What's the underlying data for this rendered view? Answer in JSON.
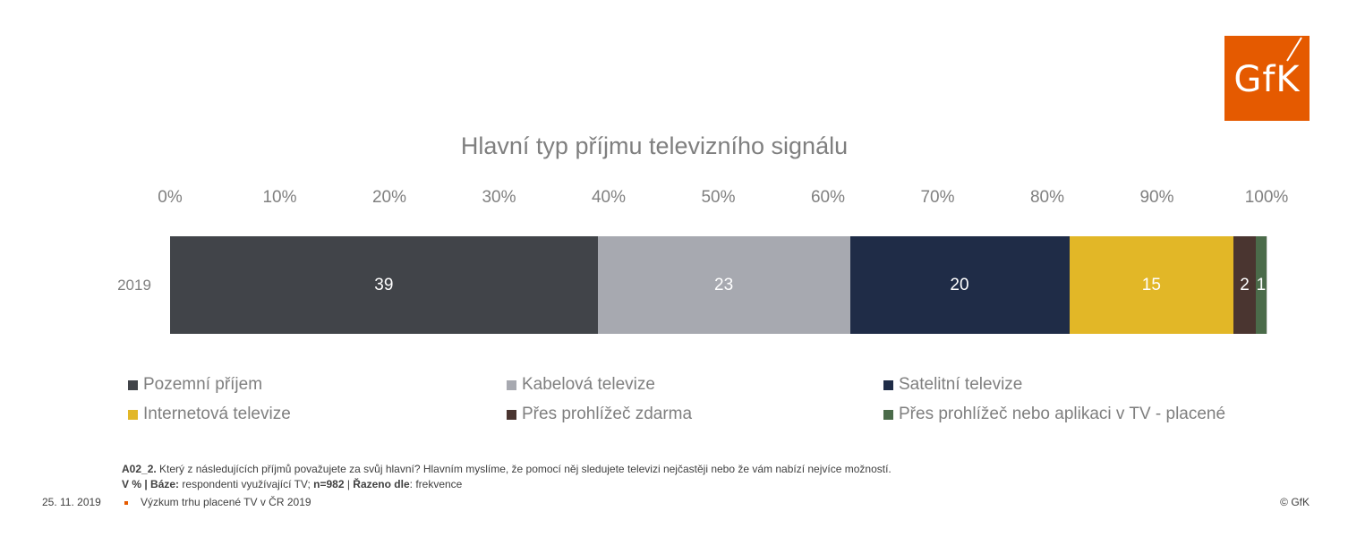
{
  "logo": {
    "text": "GfK"
  },
  "chart_data": {
    "type": "bar",
    "orientation": "horizontal",
    "stacked": true,
    "title": "Hlavní typ příjmu televizního signálu",
    "categories": [
      "2019"
    ],
    "xlim": [
      0,
      100
    ],
    "x_ticks": [
      "0%",
      "10%",
      "20%",
      "30%",
      "40%",
      "50%",
      "60%",
      "70%",
      "80%",
      "90%",
      "100%"
    ],
    "grid": true,
    "legend_position": "bottom",
    "series": [
      {
        "name": "Pozemní příjem",
        "values": [
          39
        ],
        "color": "#414449",
        "label_text": "39"
      },
      {
        "name": "Kabelová televize",
        "values": [
          23
        ],
        "color": "#a7a9b0",
        "label_text": "23"
      },
      {
        "name": "Satelitní televize",
        "values": [
          20
        ],
        "color": "#1f2c47",
        "label_text": "20"
      },
      {
        "name": "Internetová televize",
        "values": [
          15
        ],
        "color": "#e2b727",
        "label_text": "15"
      },
      {
        "name": "Přes prohlížeč zdarma",
        "values": [
          2
        ],
        "color": "#4a3530",
        "label_text": "2"
      },
      {
        "name": "Přes prohlížeč nebo aplikaci v TV - placené",
        "values": [
          1
        ],
        "color": "#4b6b4a",
        "label_text": "1"
      }
    ]
  },
  "note": {
    "q_code": "A02_2.",
    "q_text": " Který z následujících příjmů považujete za svůj hlavní? Hlavním myslíme, že pomocí něj sledujete televizi nejčastěji nebo že vám nabízí nejvíce možností.",
    "unit": "V %",
    "sep1": " | ",
    "base_label": "Báze:",
    "base_text": " respondenti využívající TV; ",
    "n_label": "n=982",
    "sep2": " | ",
    "sort_label": "Řazeno dle",
    "sort_text": ": frekvence"
  },
  "footer": {
    "date": "25. 11. 2019",
    "project": "Výzkum trhu placené TV v ČR 2019",
    "copyright": "© GfK"
  }
}
